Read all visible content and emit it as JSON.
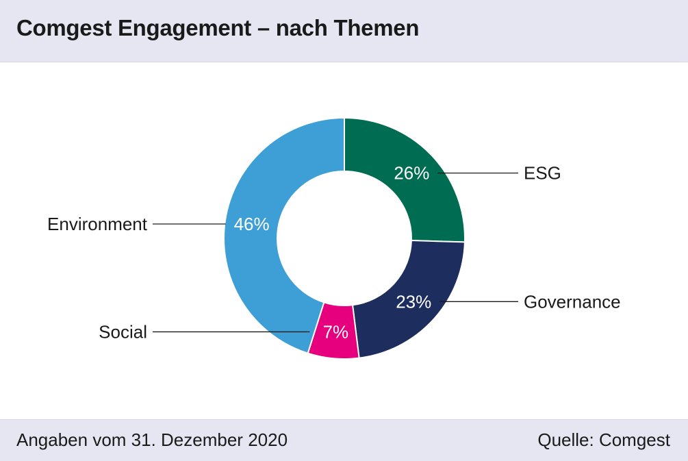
{
  "header": {
    "title": "Comgest Engagement – nach Themen"
  },
  "footer": {
    "note": "Angaben vom 31. Dezember 2020",
    "source": "Quelle: Comgest"
  },
  "chart_data": {
    "type": "pie",
    "donut": true,
    "title": "Comgest Engagement – nach Themen",
    "categories": [
      "ESG",
      "Governance",
      "Social",
      "Environment"
    ],
    "values": [
      26,
      23,
      7,
      46
    ],
    "value_labels": [
      "26%",
      "23%",
      "7%",
      "46%"
    ],
    "colors": [
      "#006d52",
      "#1c2d5e",
      "#e6007e",
      "#3d9fd6"
    ],
    "start": "12 o'clock",
    "direction": "clockwise"
  }
}
